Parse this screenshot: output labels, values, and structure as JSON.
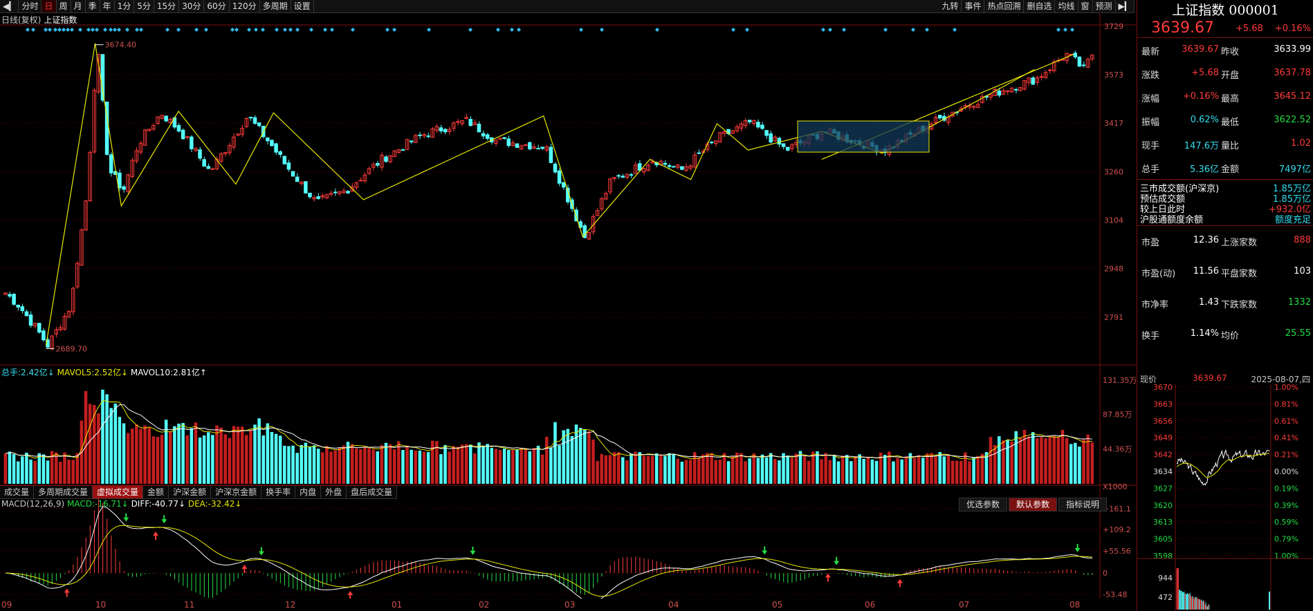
{
  "toolbar": {
    "left_items": [
      "分时",
      "日",
      "周",
      "月",
      "季",
      "年",
      "1分",
      "5分",
      "15分",
      "30分",
      "60分",
      "120分",
      "多周期",
      "设置"
    ],
    "active": "日",
    "right_items": [
      "九转",
      "事件",
      "热点回溯",
      "删自选",
      "均线",
      "窗",
      "预测"
    ]
  },
  "chart": {
    "title": "日线(复权)",
    "subtitle": "上证指数",
    "high_label": "3674.40",
    "low_label": "2689.70",
    "y_ticks": [
      "3729",
      "3573",
      "3417",
      "3260",
      "3104",
      "2948",
      "2791"
    ]
  },
  "volume": {
    "legend_total_label": "总手:",
    "legend_total_value": "2.42亿↓",
    "legend_ma5_label": "MAVOL5:",
    "legend_ma5_value": "2.52亿↓",
    "legend_ma10_label": "MAVOL10:",
    "legend_ma10_value": "2.81亿↑",
    "y_ticks": [
      "131.35万",
      "87.85万",
      "44.36万",
      "X1000"
    ],
    "tabs": [
      "成交量",
      "多周期成交量",
      "虚拟成交量",
      "金额",
      "沪深金额",
      "沪深京金额",
      "换手率",
      "内盘",
      "外盘",
      "盘后成交量"
    ],
    "active_tab": "虚拟成交量"
  },
  "macd": {
    "name": "MACD(12,26,9)",
    "macd_label": "MACD:",
    "macd_value": "-16.71↓",
    "diff_label": "DIFF:",
    "diff_value": "-40.77↓",
    "dea_label": "DEA:",
    "dea_value": "-32.42↓",
    "buttons": [
      "优选参数",
      "默认参数",
      "指标说明"
    ],
    "active_button": "默认参数",
    "y_ticks": [
      "+161.1",
      "+109.2",
      "+55.56",
      "0",
      "-53.48"
    ]
  },
  "x_axis": [
    "09",
    "10",
    "11",
    "12",
    "01",
    "02",
    "03",
    "04",
    "05",
    "06",
    "07",
    "08"
  ],
  "panel": {
    "title": "上证指数 000001",
    "price": "3639.67",
    "change": "+5.68",
    "change_pct": "+0.16%",
    "quote_rows": [
      {
        "l1": "最新",
        "v1": "3639.67",
        "c1": "red",
        "l2": "昨收",
        "v2": "3633.99",
        "c2": "white"
      },
      {
        "l1": "涨跌",
        "v1": "+5.68",
        "c1": "red",
        "l2": "开盘",
        "v2": "3637.78",
        "c2": "red"
      },
      {
        "l1": "涨幅",
        "v1": "+0.16%",
        "c1": "red",
        "l2": "最高",
        "v2": "3645.12",
        "c2": "red"
      },
      {
        "l1": "振幅",
        "v1": "0.62%",
        "c1": "cyan",
        "l2": "最低",
        "v2": "3622.52",
        "c2": "green"
      },
      {
        "l1": "现手",
        "v1": "147.6万",
        "c1": "cyan",
        "l2": "量比",
        "v2": "1.02",
        "c2": "red"
      },
      {
        "l1": "总手",
        "v1": "5.36亿",
        "c1": "cyan",
        "l2": "金额",
        "v2": "7497亿",
        "c2": "cyan"
      }
    ],
    "market_rows": [
      {
        "l": "三市成交额(沪深京)",
        "v": "1.85万亿",
        "c": "cyan"
      },
      {
        "l": "预估成交额",
        "v": "1.85万亿",
        "c": "cyan"
      },
      {
        "l": "较上日此时",
        "v": "+932.0亿",
        "c": "red"
      },
      {
        "l": "沪股通额度余额",
        "v": "额度充足",
        "c": "cyan"
      }
    ],
    "stat_rows": [
      {
        "l1": "市盈",
        "v1": "12.36",
        "l2": "上涨家数",
        "v2": "888",
        "c2": "red"
      },
      {
        "l1": "市盈(动)",
        "v1": "11.56",
        "l2": "平盘家数",
        "v2": "103",
        "c2": "white"
      },
      {
        "l1": "市净率",
        "v1": "1.43",
        "l2": "下跌家数",
        "v2": "1332",
        "c2": "green"
      },
      {
        "l1": "换手",
        "v1": "1.14%",
        "l2": "均价",
        "v2": "25.55",
        "c2": "green"
      }
    ],
    "mini_label": "现价",
    "mini_price": "3639.67",
    "mini_date": "2025-08-07,四",
    "mini_left_ticks": [
      "3670",
      "3663",
      "3656",
      "3649",
      "3642",
      "3634",
      "3627",
      "3620",
      "3613",
      "3605",
      "3598"
    ],
    "mini_right_ticks": [
      "1.00%",
      "0.81%",
      "0.61%",
      "0.41%",
      "0.21%",
      "0.00%",
      "0.19%",
      "0.39%",
      "0.59%",
      "0.79%",
      "1.00%"
    ],
    "mini_vol_ticks": [
      "944",
      "472"
    ]
  },
  "colors": {
    "up": "#ff3b3b",
    "down": "#54ffff",
    "ma1": "#ffffff",
    "ma2": "#e8e800",
    "border": "#7a1010"
  }
}
